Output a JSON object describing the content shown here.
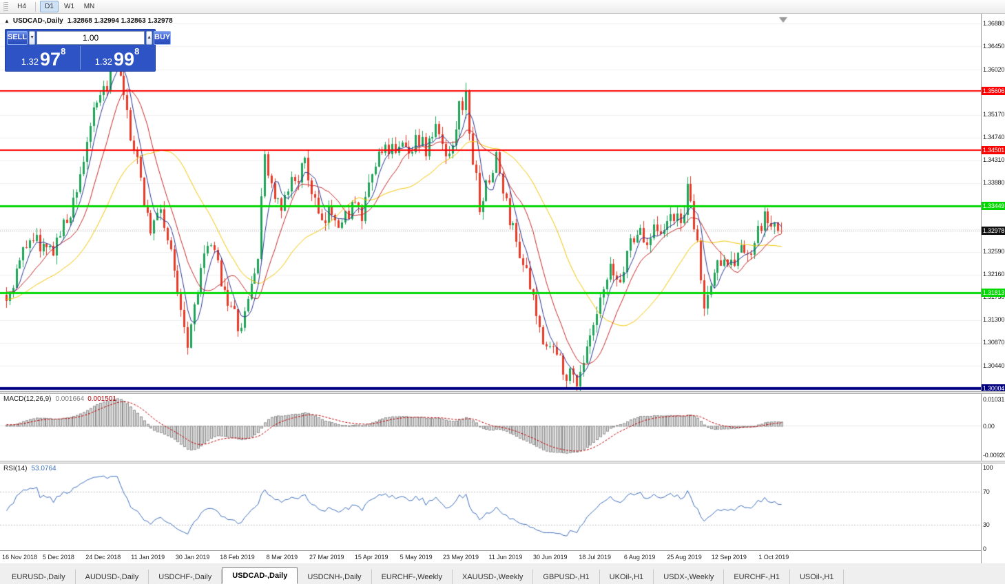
{
  "toolbar": {
    "timeframes": [
      {
        "label": "H4",
        "active": false
      },
      {
        "label": "D1",
        "active": true
      },
      {
        "label": "W1",
        "active": false
      },
      {
        "label": "MN",
        "active": false
      }
    ]
  },
  "chart": {
    "symbol_title": "USDCAD-,Daily",
    "ohlc_text": "1.32868 1.32994 1.32863 1.32978"
  },
  "trade": {
    "sell_label": "SELL",
    "buy_label": "BUY",
    "volume": "1.00",
    "spin_down": "▼",
    "spin_up": "▲",
    "sell_price": {
      "main": "1.32",
      "big": "97",
      "sup": "8"
    },
    "buy_price": {
      "main": "1.32",
      "big": "99",
      "sup": "8"
    }
  },
  "price_axis": {
    "labels": [
      "1.36880",
      "1.36450",
      "1.36020",
      "1.35170",
      "1.34740",
      "1.34310",
      "1.33880",
      "1.32590",
      "1.32160",
      "1.31730",
      "1.31300",
      "1.30870",
      "1.30440"
    ],
    "grid_top": 1.3688,
    "grid_step": 0.0043,
    "current": {
      "label": "1.32978",
      "price": 1.32978,
      "bg": "#111111"
    }
  },
  "hlines": [
    {
      "price": 1.35606,
      "label": "1.35606",
      "color": "#FF0000",
      "width": 2
    },
    {
      "price": 1.34501,
      "label": "1.34501",
      "color": "#FF0000",
      "width": 2
    },
    {
      "price": 1.33449,
      "label": "1.33449",
      "color": "#00D800",
      "width": 3
    },
    {
      "price": 1.31813,
      "label": "1.31813",
      "color": "#00D800",
      "width": 3
    },
    {
      "price": 1.30004,
      "label": "1.30004",
      "color": "#000080",
      "width": 4
    }
  ],
  "chart_data": {
    "type": "candlestick",
    "symbol": "USDCAD-",
    "timeframe": "Daily",
    "last_ohlc": {
      "open": 1.32868,
      "high": 1.32994,
      "low": 1.32863,
      "close": 1.32978
    },
    "bid": 1.32978,
    "ask": 1.32998,
    "candle_count": 232,
    "price_top": 1.37065,
    "price_bottom": 1.29955,
    "last_close": 1.32978,
    "seed": 1337,
    "price_path": [
      [
        0,
        1.317
      ],
      [
        7,
        1.329
      ],
      [
        13,
        1.3255
      ],
      [
        19,
        1.333
      ],
      [
        23,
        1.343
      ],
      [
        25,
        1.35
      ],
      [
        29,
        1.3555
      ],
      [
        31,
        1.36
      ],
      [
        33,
        1.3618
      ],
      [
        35,
        1.354
      ],
      [
        37,
        1.348
      ],
      [
        39,
        1.342
      ],
      [
        43,
        1.33
      ],
      [
        46,
        1.334
      ],
      [
        49,
        1.325
      ],
      [
        52,
        1.316
      ],
      [
        54,
        1.309
      ],
      [
        58,
        1.323
      ],
      [
        61,
        1.327
      ],
      [
        64,
        1.321
      ],
      [
        67,
        1.315
      ],
      [
        70,
        1.3105
      ],
      [
        72,
        1.317
      ],
      [
        75,
        1.325
      ],
      [
        77,
        1.3445
      ],
      [
        79,
        1.338
      ],
      [
        82,
        1.333
      ],
      [
        85,
        1.339
      ],
      [
        89,
        1.342
      ],
      [
        92,
        1.335
      ],
      [
        94,
        1.33
      ],
      [
        97,
        1.334
      ],
      [
        100,
        1.331
      ],
      [
        103,
        1.335
      ],
      [
        106,
        1.332
      ],
      [
        109,
        1.34
      ],
      [
        112,
        1.346
      ],
      [
        114,
        1.343
      ],
      [
        117,
        1.347
      ],
      [
        120,
        1.344
      ],
      [
        122,
        1.348
      ],
      [
        125,
        1.345
      ],
      [
        128,
        1.349
      ],
      [
        131,
        1.344
      ],
      [
        133,
        1.347
      ],
      [
        135,
        1.353
      ],
      [
        137,
        1.3548
      ],
      [
        139,
        1.343
      ],
      [
        141,
        1.335
      ],
      [
        144,
        1.339
      ],
      [
        146,
        1.344
      ],
      [
        148,
        1.337
      ],
      [
        151,
        1.33
      ],
      [
        154,
        1.324
      ],
      [
        157,
        1.316
      ],
      [
        159,
        1.311
      ],
      [
        162,
        1.308
      ],
      [
        165,
        1.3055
      ],
      [
        167,
        1.303
      ],
      [
        170,
        1.3018
      ],
      [
        173,
        1.307
      ],
      [
        175,
        1.311
      ],
      [
        178,
        1.318
      ],
      [
        180,
        1.322
      ],
      [
        183,
        1.32
      ],
      [
        185,
        1.326
      ],
      [
        188,
        1.33
      ],
      [
        191,
        1.327
      ],
      [
        193,
        1.332
      ],
      [
        196,
        1.329
      ],
      [
        198,
        1.333
      ],
      [
        201,
        1.331
      ],
      [
        203,
        1.337
      ],
      [
        206,
        1.327
      ],
      [
        208,
        1.315
      ],
      [
        211,
        1.322
      ],
      [
        214,
        1.326
      ],
      [
        216,
        1.323
      ],
      [
        219,
        1.327
      ],
      [
        221,
        1.324
      ],
      [
        224,
        1.329
      ],
      [
        226,
        1.332
      ],
      [
        229,
        1.33
      ],
      [
        231,
        1.32978
      ]
    ],
    "moving_averages": [
      {
        "period": 5,
        "color": "#283593"
      },
      {
        "period": 12,
        "color": "#C62828"
      },
      {
        "period": 30,
        "color": "#F5C500"
      }
    ],
    "indicators": {
      "macd": {
        "fast": 12,
        "slow": 26,
        "signal": 9,
        "current_main": 0.001664,
        "current_signal": 0.001501
      },
      "rsi": {
        "period": 14,
        "current": 53.0764,
        "levels": [
          70,
          30
        ]
      }
    }
  },
  "macd_panel": {
    "name": "MACD(12,26,9)",
    "value1": "0.001664",
    "value2": "0.001501",
    "axis_labels": [
      "0.01031",
      "0.00",
      "-0.00920"
    ]
  },
  "rsi_panel": {
    "name": "RSI(14)",
    "value": "53.0764",
    "axis_labels": [
      "100",
      "70",
      "30",
      "0"
    ]
  },
  "date_axis": [
    "16 Nov 2018",
    "5 Dec 2018",
    "24 Dec 2018",
    "11 Jan 2019",
    "30 Jan 2019",
    "18 Feb 2019",
    "8 Mar 2019",
    "27 Mar 2019",
    "15 Apr 2019",
    "5 May 2019",
    "23 May 2019",
    "11 Jun 2019",
    "30 Jun 2019",
    "18 Jul 2019",
    "6 Aug 2019",
    "25 Aug 2019",
    "12 Sep 2019",
    "1 Oct 2019"
  ],
  "tabs": [
    {
      "label": "EURUSD-,Daily",
      "active": false
    },
    {
      "label": "AUDUSD-,Daily",
      "active": false
    },
    {
      "label": "USDCHF-,Daily",
      "active": false
    },
    {
      "label": "USDCAD-,Daily",
      "active": true
    },
    {
      "label": "USDCNH-,Daily",
      "active": false
    },
    {
      "label": "EURCHF-,Weekly",
      "active": false
    },
    {
      "label": "XAUUSD-,Weekly",
      "active": false
    },
    {
      "label": "GBPUSD-,H1",
      "active": false
    },
    {
      "label": "UKOil-,H1",
      "active": false
    },
    {
      "label": "USDX-,Weekly",
      "active": false
    },
    {
      "label": "EURCHF-,H1",
      "active": false
    },
    {
      "label": "USOil-,H1",
      "active": false
    }
  ],
  "colors": {
    "bull": "#1FA35A",
    "bear": "#E83A28",
    "grid": "#f0f0f0",
    "macd_hist_fill": "#dcdcdc",
    "macd_hist_border": "#8f8f8f",
    "macd_signal": "#C00000",
    "rsi_line": "#3E6FBE",
    "bid_line": "#9a9a9a"
  }
}
